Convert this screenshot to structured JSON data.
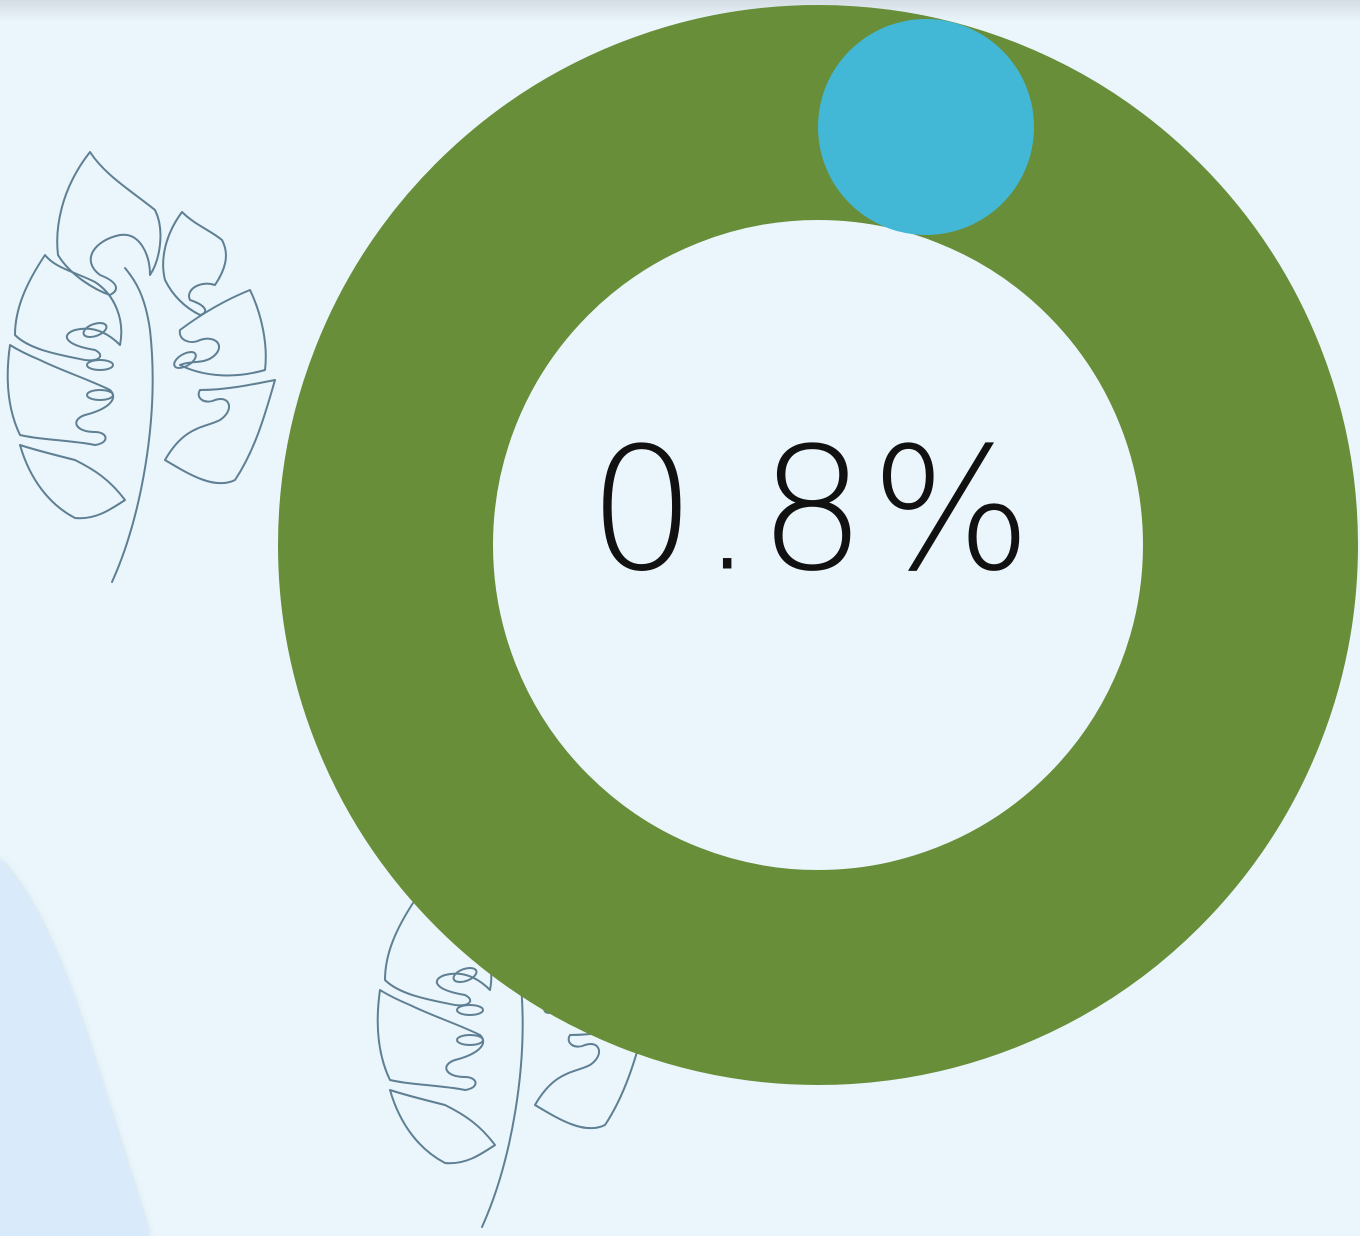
{
  "progress": {
    "label": "0.8%"
  }
}
